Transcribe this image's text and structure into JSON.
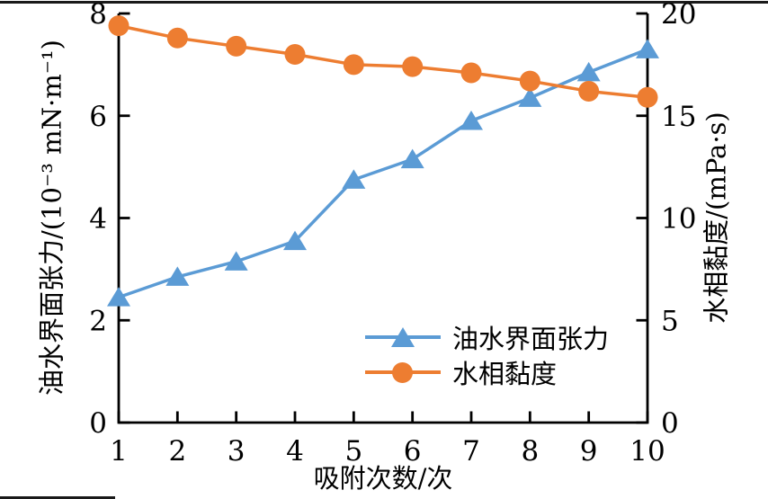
{
  "figure": {
    "background_color": "#ffffff",
    "axis_color": "#000000",
    "page_rule_top": true,
    "page_rule_bottom_left_fragment": true
  },
  "chart_data": {
    "type": "line",
    "title": "",
    "x": [
      1,
      2,
      3,
      4,
      5,
      6,
      7,
      8,
      9,
      10
    ],
    "xlabel": "吸附次数/次",
    "xlim": [
      1,
      10
    ],
    "xticks": [
      1,
      2,
      3,
      4,
      5,
      6,
      7,
      8,
      9,
      10
    ],
    "grid": false,
    "axes": {
      "left": {
        "label": "油水界面张力/(10⁻³ mN·m⁻¹)",
        "lim": [
          0,
          8
        ],
        "ticks": [
          0,
          2,
          4,
          6,
          8
        ]
      },
      "right": {
        "label": "水相黏度/(mPa·s)",
        "lim": [
          0,
          20
        ],
        "ticks": [
          0,
          5,
          10,
          15,
          20
        ]
      }
    },
    "series": [
      {
        "name": "油水界面张力",
        "axis": "left",
        "marker": "triangle",
        "color": "#5B9BD5",
        "values": [
          2.45,
          2.85,
          3.15,
          3.55,
          4.75,
          5.15,
          5.9,
          6.35,
          6.85,
          7.3
        ]
      },
      {
        "name": "水相黏度",
        "axis": "right",
        "marker": "circle",
        "color": "#ED7D31",
        "values": [
          19.4,
          18.8,
          18.4,
          18.0,
          17.5,
          17.4,
          17.1,
          16.7,
          16.2,
          15.9
        ]
      }
    ],
    "legend": {
      "position": "inside lower-right",
      "entries": [
        "油水界面张力",
        "水相黏度"
      ]
    }
  }
}
